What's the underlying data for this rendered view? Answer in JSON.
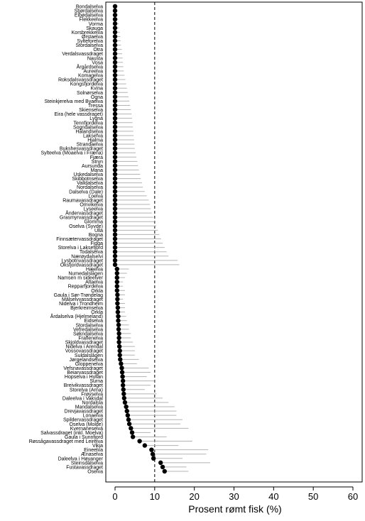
{
  "chart_data": {
    "type": "dot-errorbar",
    "xlabel": "Prosent rømt fisk (%)",
    "ylabel": "",
    "xlim": [
      0,
      60
    ],
    "xticks": [
      0,
      10,
      20,
      30,
      40,
      50,
      60
    ],
    "reference_line": 10,
    "grid": false,
    "rivers": [
      {
        "name": "Bondalselva",
        "value": 0,
        "upper": 0
      },
      {
        "name": "Stjørdalselva",
        "value": 0,
        "upper": 0.5
      },
      {
        "name": "Eibødalselva",
        "value": 0,
        "upper": 0.6
      },
      {
        "name": "Flekkeelva",
        "value": 0,
        "upper": 0.8
      },
      {
        "name": "Vorma",
        "value": 0,
        "upper": 0.9
      },
      {
        "name": "Skauga",
        "value": 0,
        "upper": 1.0
      },
      {
        "name": "Korsbrekkelva",
        "value": 0,
        "upper": 1.2
      },
      {
        "name": "Ørstaelva",
        "value": 0,
        "upper": 1.3
      },
      {
        "name": "Sylteforelva",
        "value": 0,
        "upper": 1.4
      },
      {
        "name": "Stordalselva",
        "value": 0,
        "upper": 1.5
      },
      {
        "name": "Otra",
        "value": 0,
        "upper": 1.7
      },
      {
        "name": "Verdalsvassdraget",
        "value": 0,
        "upper": 1.8
      },
      {
        "name": "Nausta",
        "value": 0,
        "upper": 1.9
      },
      {
        "name": "Vosa",
        "value": 0,
        "upper": 2.0
      },
      {
        "name": "Årgårdselva",
        "value": 0,
        "upper": 2.1
      },
      {
        "name": "Aureelva",
        "value": 0,
        "upper": 2.2
      },
      {
        "name": "Komagelva",
        "value": 0,
        "upper": 2.4
      },
      {
        "name": "Roksdalsvassdraget",
        "value": 0,
        "upper": 2.6
      },
      {
        "name": "Kongsfjordelva",
        "value": 0,
        "upper": 2.8
      },
      {
        "name": "Kvina",
        "value": 0,
        "upper": 3.0
      },
      {
        "name": "Solnørselva",
        "value": 0,
        "upper": 3.2
      },
      {
        "name": "Ogna",
        "value": 0,
        "upper": 3.4
      },
      {
        "name": "Steinkjerelva med Byaelva",
        "value": 0,
        "upper": 3.6
      },
      {
        "name": "Tressa",
        "value": 0,
        "upper": 3.8
      },
      {
        "name": "Skienselva",
        "value": 0,
        "upper": 4.0
      },
      {
        "name": "Eira (hele vassdraget)",
        "value": 0,
        "upper": 4.2
      },
      {
        "name": "Lygna",
        "value": 0,
        "upper": 4.3
      },
      {
        "name": "Tennfjordelva",
        "value": 0,
        "upper": 4.4
      },
      {
        "name": "Sogndalselva",
        "value": 0,
        "upper": 4.5
      },
      {
        "name": "Hålandselva",
        "value": 0,
        "upper": 4.6
      },
      {
        "name": "Laksefva",
        "value": 0,
        "upper": 4.7
      },
      {
        "name": "Hjalma",
        "value": 0,
        "upper": 4.8
      },
      {
        "name": "Strandaelva",
        "value": 0,
        "upper": 4.9
      },
      {
        "name": "Bukshesvassdraget",
        "value": 0,
        "upper": 5.0
      },
      {
        "name": "Sylteelva (Moaelva i Fræna)",
        "value": 0,
        "upper": 5.2
      },
      {
        "name": "Fjæra",
        "value": 0,
        "upper": 5.4
      },
      {
        "name": "Stryn",
        "value": 0,
        "upper": 5.6
      },
      {
        "name": "Aursunda",
        "value": 0,
        "upper": 5.8
      },
      {
        "name": "Mana",
        "value": 0,
        "upper": 6.0
      },
      {
        "name": "Uskedalselva",
        "value": 0,
        "upper": 6.3
      },
      {
        "name": "Skibbotnselva",
        "value": 0,
        "upper": 6.5
      },
      {
        "name": "Valldalselva",
        "value": 0,
        "upper": 6.8
      },
      {
        "name": "Nordalselva",
        "value": 0,
        "upper": 7.0
      },
      {
        "name": "Dalselva (Dale)",
        "value": 0,
        "upper": 7.5
      },
      {
        "name": "Loelva",
        "value": 0,
        "upper": 8.0
      },
      {
        "name": "Raumavassdraget",
        "value": 0,
        "upper": 8.5
      },
      {
        "name": "Omvikelva",
        "value": 0,
        "upper": 8.8
      },
      {
        "name": "Lyseelva",
        "value": 0,
        "upper": 9.0
      },
      {
        "name": "Åndervassdraget",
        "value": 0,
        "upper": 9.3
      },
      {
        "name": "Grasmyrvassdraget",
        "value": 0,
        "upper": 9.6
      },
      {
        "name": "Glomma",
        "value": 0,
        "upper": 10.0
      },
      {
        "name": "Oselva (Syvde)",
        "value": 0,
        "upper": 10.4
      },
      {
        "name": "Ulla",
        "value": 0,
        "upper": 10.8
      },
      {
        "name": "Bogna",
        "value": 0,
        "upper": 11.2
      },
      {
        "name": "Finnsætervassdraget",
        "value": 0,
        "upper": 11.6
      },
      {
        "name": "Figga",
        "value": 0,
        "upper": 12.0
      },
      {
        "name": "Storelva i Laksefjord",
        "value": 0,
        "upper": 12.5
      },
      {
        "name": "Todalselva",
        "value": 0,
        "upper": 13.0
      },
      {
        "name": "Nærøydalselvi",
        "value": 0,
        "upper": 13.5
      },
      {
        "name": "Lysbotnvassdraget",
        "value": 0,
        "upper": 15.8
      },
      {
        "name": "Oksfjordvassdraget",
        "value": 0,
        "upper": 16.2
      },
      {
        "name": "Hæelva",
        "value": 0.5,
        "upper": 3.5
      },
      {
        "name": "Numedalslågen",
        "value": 0.5,
        "upper": 3.0
      },
      {
        "name": "Namsen m sideelver",
        "value": 0.5,
        "upper": 2.5
      },
      {
        "name": "Altaelva",
        "value": 0.5,
        "upper": 2.0
      },
      {
        "name": "Repparfjordelva",
        "value": 0.5,
        "upper": 2.0
      },
      {
        "name": "Orkla",
        "value": 0.5,
        "upper": 2.5
      },
      {
        "name": "Gaula i Sør-Trøndelag",
        "value": 0.6,
        "upper": 2.5
      },
      {
        "name": "Målselvvassdraget",
        "value": 0.6,
        "upper": 2.0
      },
      {
        "name": "Nidelva i Trondheim",
        "value": 0.6,
        "upper": 2.5
      },
      {
        "name": "Bjerkreimselva",
        "value": 0.7,
        "upper": 2.5
      },
      {
        "name": "Orkla",
        "value": 0.7,
        "upper": 2.5
      },
      {
        "name": "Årdalselva (Hjelmeland)",
        "value": 0.8,
        "upper": 2.8
      },
      {
        "name": "Eidselva",
        "value": 0.8,
        "upper": 3.0
      },
      {
        "name": "Stordalselva",
        "value": 0.9,
        "upper": 3.5
      },
      {
        "name": "Vefredalselva",
        "value": 0.9,
        "upper": 3.5
      },
      {
        "name": "Søkndalselva",
        "value": 1.0,
        "upper": 4.0
      },
      {
        "name": "Fraflenelva",
        "value": 1.0,
        "upper": 4.0
      },
      {
        "name": "Skjoldvassdraget",
        "value": 1.0,
        "upper": 4.5
      },
      {
        "name": "Nidelva i Arendal",
        "value": 1.1,
        "upper": 5.0
      },
      {
        "name": "Vossovassdraget",
        "value": 1.2,
        "upper": 5.0
      },
      {
        "name": "Suldalslågen",
        "value": 1.2,
        "upper": 5.0
      },
      {
        "name": "Jørgelandselva",
        "value": 1.3,
        "upper": 6.0
      },
      {
        "name": "Gloppenelva",
        "value": 1.5,
        "upper": 5.5
      },
      {
        "name": "Vefsnavassdraget",
        "value": 1.7,
        "upper": 8.5
      },
      {
        "name": "Beiarvassdraget",
        "value": 1.8,
        "upper": 9.0
      },
      {
        "name": "Hopselva i Hyllan",
        "value": 1.9,
        "upper": 8.0
      },
      {
        "name": "Surna",
        "value": 2.0,
        "upper": 10.0
      },
      {
        "name": "Breivikvassdraget",
        "value": 2.0,
        "upper": 9.0
      },
      {
        "name": "Storelva (Arna)",
        "value": 2.1,
        "upper": 7.5
      },
      {
        "name": "Frøyselva",
        "value": 2.2,
        "upper": 10.5
      },
      {
        "name": "Daleelva i Vaksdal",
        "value": 2.3,
        "upper": 12.0
      },
      {
        "name": "Nordalsla",
        "value": 2.5,
        "upper": 13.5
      },
      {
        "name": "Mandalselva",
        "value": 2.8,
        "upper": 15.0
      },
      {
        "name": "Drevjavassdraget",
        "value": 3.0,
        "upper": 15.5
      },
      {
        "name": "Lonaelva",
        "value": 3.2,
        "upper": 15.5
      },
      {
        "name": "Spildervassdraget",
        "value": 3.4,
        "upper": 17.0
      },
      {
        "name": "Oselva (Molde)",
        "value": 3.6,
        "upper": 16.5
      },
      {
        "name": "Kvernaneselva",
        "value": 4.0,
        "upper": 18.5
      },
      {
        "name": "Salvassdraget (inkl. Moelva)",
        "value": 4.3,
        "upper": 9.0
      },
      {
        "name": "Gaula i Sunnfjord",
        "value": 4.5,
        "upper": 13.0
      },
      {
        "name": "Røssågavassdraget med Leirelva",
        "value": 6.2,
        "upper": 19.5
      },
      {
        "name": "Vikja",
        "value": 7.5,
        "upper": 16.0
      },
      {
        "name": "Eineelva",
        "value": 9.2,
        "upper": 23.5
      },
      {
        "name": "Ænaselva",
        "value": 9.5,
        "upper": 23.0
      },
      {
        "name": "Daleelva i Høyanger",
        "value": 9.7,
        "upper": 17.0
      },
      {
        "name": "Steinsdalselva",
        "value": 11.5,
        "upper": 24.0
      },
      {
        "name": "Fustavassdraget",
        "value": 12.0,
        "upper": 18.0
      },
      {
        "name": "Oselva",
        "value": 12.5,
        "upper": 18.5
      }
    ]
  }
}
